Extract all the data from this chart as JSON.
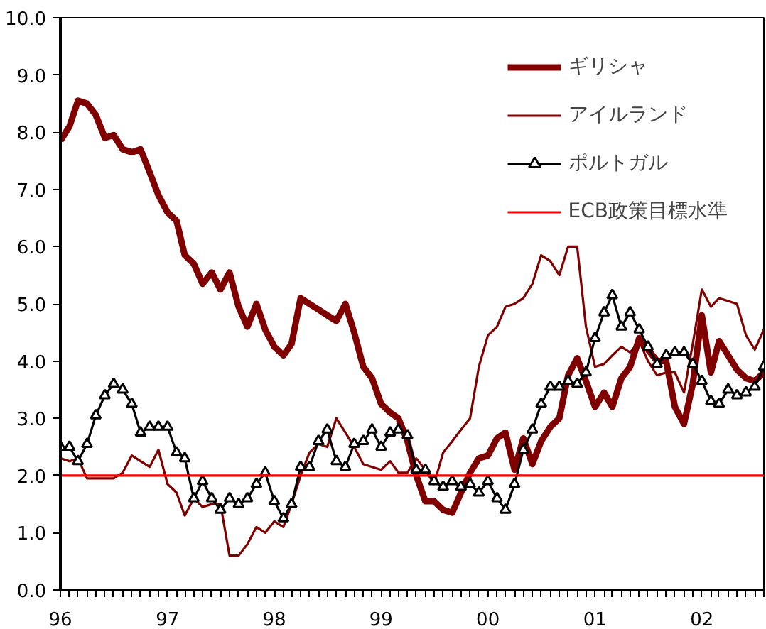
{
  "chart_data": {
    "type": "line",
    "x": [
      "1996-01",
      "1996-02",
      "1996-03",
      "1996-04",
      "1996-05",
      "1996-06",
      "1996-07",
      "1996-08",
      "1996-09",
      "1996-10",
      "1996-11",
      "1996-12",
      "1997-01",
      "1997-02",
      "1997-03",
      "1997-04",
      "1997-05",
      "1997-06",
      "1997-07",
      "1997-08",
      "1997-09",
      "1997-10",
      "1997-11",
      "1997-12",
      "1998-01",
      "1998-02",
      "1998-03",
      "1998-04",
      "1998-05",
      "1998-06",
      "1998-07",
      "1998-08",
      "1998-09",
      "1998-10",
      "1998-11",
      "1998-12",
      "1999-01",
      "1999-02",
      "1999-03",
      "1999-04",
      "1999-05",
      "1999-06",
      "1999-07",
      "1999-08",
      "1999-09",
      "1999-10",
      "1999-11",
      "1999-12",
      "2000-01",
      "2000-02",
      "2000-03",
      "2000-04",
      "2000-05",
      "2000-06",
      "2000-07",
      "2000-08",
      "2000-09",
      "2000-10",
      "2000-11",
      "2000-12",
      "2001-01",
      "2001-02",
      "2001-03",
      "2001-04",
      "2001-05",
      "2001-06",
      "2001-07",
      "2001-08",
      "2001-09",
      "2001-10",
      "2001-11",
      "2001-12",
      "2002-01",
      "2002-02",
      "2002-03",
      "2002-04",
      "2002-05",
      "2002-06",
      "2002-07",
      "2002-08"
    ],
    "series": [
      {
        "name": "ギリシャ",
        "color": "#800000",
        "marker": "none",
        "values": [
          7.85,
          8.1,
          8.55,
          8.5,
          8.3,
          7.9,
          7.95,
          7.7,
          7.65,
          7.7,
          7.3,
          6.9,
          6.6,
          6.45,
          5.85,
          5.7,
          5.35,
          5.55,
          5.25,
          5.55,
          4.95,
          4.6,
          5.0,
          4.55,
          4.25,
          4.1,
          4.3,
          5.1,
          5.0,
          4.9,
          4.8,
          4.7,
          5.0,
          4.5,
          3.9,
          3.7,
          3.25,
          3.1,
          3.0,
          2.6,
          2.0,
          1.55,
          1.55,
          1.4,
          1.35,
          1.7,
          2.05,
          2.3,
          2.35,
          2.65,
          2.75,
          2.1,
          2.65,
          2.2,
          2.6,
          2.85,
          3.0,
          3.75,
          4.05,
          3.65,
          3.2,
          3.45,
          3.2,
          3.7,
          3.9,
          4.4,
          4.2,
          4.0,
          4.0,
          3.2,
          2.9,
          3.6,
          4.8,
          3.8,
          4.35,
          4.1,
          3.85,
          3.7,
          3.65,
          3.8
        ]
      },
      {
        "name": "アイルランド",
        "color": "#800000",
        "marker": "none",
        "values": [
          2.3,
          2.25,
          2.3,
          1.95,
          1.95,
          1.95,
          1.95,
          2.05,
          2.35,
          2.25,
          2.15,
          2.45,
          1.85,
          1.7,
          1.3,
          1.6,
          1.45,
          1.5,
          1.5,
          0.6,
          0.6,
          0.8,
          1.1,
          1.0,
          1.2,
          1.1,
          1.5,
          2.0,
          2.4,
          2.55,
          2.5,
          3.0,
          2.75,
          2.5,
          2.2,
          2.15,
          2.1,
          2.25,
          2.05,
          2.05,
          2.3,
          2.1,
          1.85,
          2.4,
          2.6,
          2.8,
          3.0,
          3.9,
          4.45,
          4.6,
          4.95,
          5.0,
          5.1,
          5.35,
          5.85,
          5.75,
          5.5,
          6.0,
          6.0,
          4.6,
          3.9,
          3.95,
          4.1,
          4.25,
          4.15,
          4.35,
          4.0,
          3.75,
          3.8,
          3.8,
          3.45,
          4.3,
          5.25,
          4.95,
          5.1,
          5.05,
          5.0,
          4.45,
          4.2,
          4.55
        ]
      },
      {
        "name": "ポルトガル",
        "color": "#000000",
        "marker": "triangle",
        "values": [
          2.5,
          2.5,
          2.25,
          2.55,
          3.05,
          3.4,
          3.6,
          3.5,
          3.25,
          2.75,
          2.85,
          2.85,
          2.85,
          2.4,
          2.3,
          1.6,
          1.9,
          1.6,
          1.4,
          1.6,
          1.5,
          1.6,
          1.85,
          2.05,
          1.55,
          1.25,
          1.5,
          2.15,
          2.15,
          2.6,
          2.8,
          2.25,
          2.15,
          2.55,
          2.6,
          2.8,
          2.5,
          2.75,
          2.8,
          2.7,
          2.1,
          2.1,
          1.9,
          1.8,
          1.9,
          1.8,
          1.85,
          1.7,
          1.9,
          1.6,
          1.4,
          1.85,
          2.45,
          2.8,
          3.25,
          3.55,
          3.55,
          3.65,
          3.6,
          3.8,
          4.4,
          4.85,
          5.15,
          4.6,
          4.85,
          4.55,
          4.25,
          3.95,
          4.1,
          4.15,
          4.15,
          3.95,
          3.65,
          3.3,
          3.25,
          3.5,
          3.4,
          3.45,
          3.55,
          3.9
        ]
      }
    ],
    "ref_lines": [
      {
        "axis": "y",
        "value": 2.0,
        "label": "ECB政策目標水準",
        "color": "#ff0000",
        "line_style": "solid"
      }
    ],
    "xlim": [
      "1996-01",
      "2002-08"
    ],
    "xticks": [
      {
        "value": "1996-01",
        "label": "96"
      },
      {
        "value": "1997-01",
        "label": "97"
      },
      {
        "value": "1998-01",
        "label": "98"
      },
      {
        "value": "1999-01",
        "label": "99"
      },
      {
        "value": "2000-01",
        "label": "00"
      },
      {
        "value": "2001-01",
        "label": "01"
      },
      {
        "value": "2002-01",
        "label": "02"
      }
    ],
    "ylim": [
      0,
      10
    ],
    "yticks": [
      {
        "value": 0,
        "label": "0.0"
      },
      {
        "value": 1,
        "label": "1.0"
      },
      {
        "value": 2,
        "label": "2.0"
      },
      {
        "value": 3,
        "label": "3.0"
      },
      {
        "value": 4,
        "label": "4.0"
      },
      {
        "value": 5,
        "label": "5.0"
      },
      {
        "value": 6,
        "label": "6.0"
      },
      {
        "value": 7,
        "label": "7.0"
      },
      {
        "value": 8,
        "label": "8.0"
      },
      {
        "value": 9,
        "label": "9.0"
      },
      {
        "value": 10,
        "label": "10.0"
      }
    ],
    "grid": false,
    "legend": "top right",
    "line_style": "solid"
  }
}
